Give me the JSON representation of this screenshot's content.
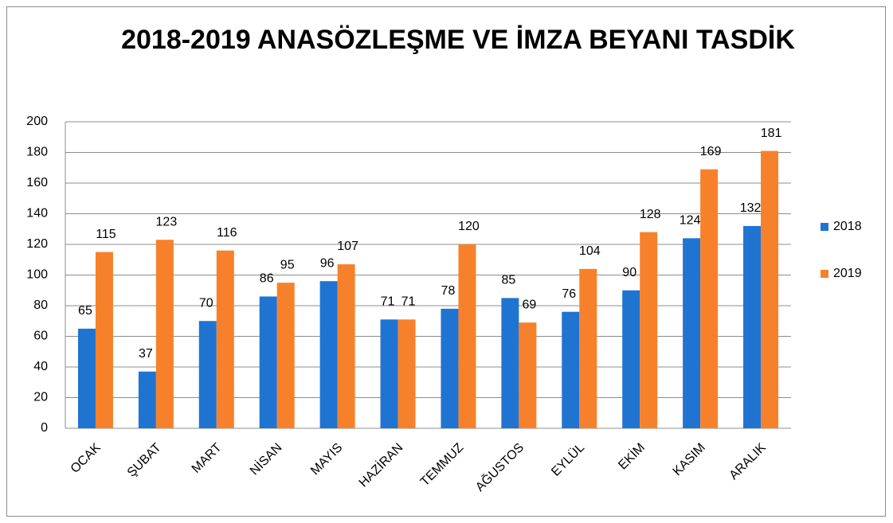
{
  "chart_data": {
    "type": "bar",
    "title": "2018-2019 ANASÖZLEŞME VE İMZA BEYANI TASDİK",
    "categories": [
      "OCAK",
      "ŞUBAT",
      "MART",
      "NİSAN",
      "MAYIS",
      "HAZİRAN",
      "TEMMUZ",
      "AĞUSTOS",
      "EYLÜL",
      "EKİM",
      "KASIM",
      "ARALIK"
    ],
    "series": [
      {
        "name": "2018",
        "color": "#1f74d1",
        "values": [
          65,
          37,
          70,
          86,
          96,
          71,
          78,
          85,
          76,
          90,
          124,
          132
        ]
      },
      {
        "name": "2019",
        "color": "#f7812b",
        "values": [
          115,
          123,
          116,
          95,
          107,
          71,
          120,
          69,
          104,
          128,
          169,
          181
        ]
      }
    ],
    "ylim": [
      0,
      200
    ],
    "yticks": [
      0,
      20,
      40,
      60,
      80,
      100,
      120,
      140,
      160,
      180,
      200
    ],
    "grid": true,
    "legend": "right"
  }
}
